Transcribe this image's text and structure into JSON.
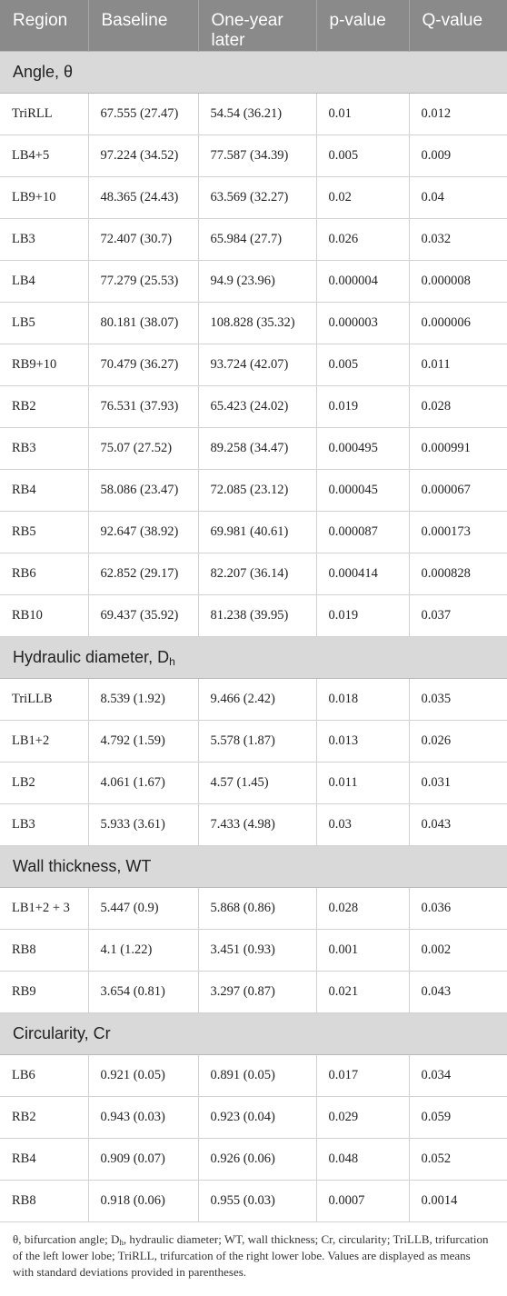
{
  "header": {
    "region": "Region",
    "baseline": "Baseline",
    "one_year": "One-year later",
    "p_value": "p-value",
    "q_value": "Q-value"
  },
  "sections": [
    {
      "title": "Angle, θ",
      "title_sub": "",
      "rows": [
        [
          "TriRLL",
          "67.555 (27.47)",
          "54.54 (36.21)",
          "0.01",
          "0.012"
        ],
        [
          "LB4+5",
          "97.224 (34.52)",
          "77.587 (34.39)",
          "0.005",
          "0.009"
        ],
        [
          "LB9+10",
          "48.365 (24.43)",
          "63.569 (32.27)",
          "0.02",
          "0.04"
        ],
        [
          "LB3",
          "72.407 (30.7)",
          "65.984 (27.7)",
          "0.026",
          "0.032"
        ],
        [
          "LB4",
          "77.279 (25.53)",
          "94.9 (23.96)",
          "0.000004",
          "0.000008"
        ],
        [
          "LB5",
          "80.181 (38.07)",
          "108.828 (35.32)",
          "0.000003",
          "0.000006"
        ],
        [
          "RB9+10",
          "70.479 (36.27)",
          "93.724 (42.07)",
          "0.005",
          "0.011"
        ],
        [
          "RB2",
          "76.531 (37.93)",
          "65.423 (24.02)",
          "0.019",
          "0.028"
        ],
        [
          "RB3",
          "75.07 (27.52)",
          "89.258 (34.47)",
          "0.000495",
          "0.000991"
        ],
        [
          "RB4",
          "58.086 (23.47)",
          "72.085 (23.12)",
          "0.000045",
          "0.000067"
        ],
        [
          "RB5",
          "92.647 (38.92)",
          "69.981 (40.61)",
          "0.000087",
          "0.000173"
        ],
        [
          "RB6",
          "62.852 (29.17)",
          "82.207 (36.14)",
          "0.000414",
          "0.000828"
        ],
        [
          "RB10",
          "69.437 (35.92)",
          "81.238 (39.95)",
          "0.019",
          "0.037"
        ]
      ]
    },
    {
      "title": "Hydraulic diameter, D",
      "title_sub": "h",
      "rows": [
        [
          "TriLLB",
          "8.539 (1.92)",
          "9.466 (2.42)",
          "0.018",
          "0.035"
        ],
        [
          "LB1+2",
          "4.792 (1.59)",
          "5.578 (1.87)",
          "0.013",
          "0.026"
        ],
        [
          "LB2",
          "4.061 (1.67)",
          "4.57 (1.45)",
          "0.011",
          "0.031"
        ],
        [
          "LB3",
          "5.933 (3.61)",
          "7.433 (4.98)",
          "0.03",
          "0.043"
        ]
      ]
    },
    {
      "title": "Wall thickness, WT",
      "title_sub": "",
      "rows": [
        [
          "LB1+2 + 3",
          "5.447 (0.9)",
          "5.868 (0.86)",
          "0.028",
          "0.036"
        ],
        [
          "RB8",
          "4.1 (1.22)",
          "3.451 (0.93)",
          "0.001",
          "0.002"
        ],
        [
          "RB9",
          "3.654 (0.81)",
          "3.297 (0.87)",
          "0.021",
          "0.043"
        ]
      ]
    },
    {
      "title": "Circularity, Cr",
      "title_sub": "",
      "rows": [
        [
          "LB6",
          "0.921 (0.05)",
          "0.891 (0.05)",
          "0.017",
          "0.034"
        ],
        [
          "RB2",
          "0.943 (0.03)",
          "0.923 (0.04)",
          "0.029",
          "0.059"
        ],
        [
          "RB4",
          "0.909 (0.07)",
          "0.926 (0.06)",
          "0.048",
          "0.052"
        ],
        [
          "RB8",
          "0.918 (0.06)",
          "0.955 (0.03)",
          "0.0007",
          "0.0014"
        ]
      ]
    }
  ],
  "footnote": {
    "part1": "θ, bifurcation angle; D",
    "sub": "h",
    "part2": ", hydraulic diameter; WT, wall thickness; Cr, circularity; TriLLB, trifurcation of the left lower lobe; TriRLL, trifurcation of the right lower lobe. Values are displayed as means with standard deviations provided in parentheses."
  }
}
